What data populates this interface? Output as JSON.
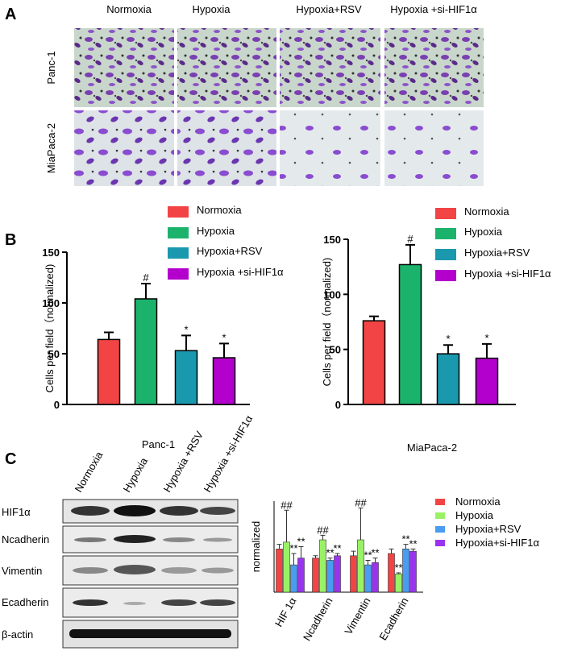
{
  "panels": {
    "a": "A",
    "b": "B",
    "c": "C"
  },
  "panel_a": {
    "columns": [
      "Normoxia",
      "Hypoxia",
      "Hypoxia+RSV",
      "Hypoxia +si-HIF1α"
    ],
    "rows": [
      "Panc-1",
      "MiaPaca-2"
    ]
  },
  "panel_c_blot": {
    "lanes": [
      "Normoxia",
      "Hypoxia",
      "Hypoxia +RSV",
      "Hypoxia +si-HIF1α"
    ],
    "rows": [
      "HIF1α",
      "Ncadherin",
      "Vimentin",
      "Ecadherin",
      "β-actin"
    ]
  },
  "chart_data": [
    {
      "type": "bar",
      "xlabel": "Panc-1",
      "ylabel": "Cells per field（normalized)",
      "categories": [
        "Normoxia",
        "Hypoxia",
        "Hypoxia+RSV",
        "Hypoxia +si-HIF1α"
      ],
      "values": [
        64,
        104,
        53,
        46
      ],
      "errors": [
        7,
        15,
        15,
        14
      ],
      "colors": [
        "#f24444",
        "#1bb36c",
        "#1a98ae",
        "#b400cc"
      ],
      "annotations": [
        null,
        "#",
        "*",
        "*"
      ],
      "ylim": [
        0,
        150
      ],
      "yticks": [
        0,
        50,
        100,
        150
      ]
    },
    {
      "type": "bar",
      "xlabel": "MiaPaca-2",
      "ylabel": "Cells per field（normalized)",
      "categories": [
        "Normoxia",
        "Hypoxia",
        "Hypoxia+RSV",
        "Hypoxia +si-HIF1α"
      ],
      "values": [
        76,
        127,
        46,
        42
      ],
      "errors": [
        4,
        18,
        8,
        13
      ],
      "colors": [
        "#f24444",
        "#1bb36c",
        "#1a98ae",
        "#b400cc"
      ],
      "annotations": [
        null,
        "#",
        "*",
        "*"
      ],
      "ylim": [
        0,
        150
      ],
      "yticks": [
        0,
        50,
        100,
        150
      ]
    },
    {
      "type": "grouped-bar",
      "ylabel": "normalized",
      "categories": [
        "HIF 1α",
        "Ncadherin",
        "Vimentin",
        "Ecadherin"
      ],
      "ylim": [
        0,
        4
      ],
      "series": [
        {
          "name": "Normoxia",
          "color": "#f24444",
          "values": [
            1.9,
            1.5,
            1.6,
            1.7
          ],
          "errors": [
            0.2,
            0.1,
            0.2,
            0.2
          ]
        },
        {
          "name": "Hypoxia",
          "color": "#99f266",
          "values": [
            2.2,
            2.3,
            2.3,
            0.8
          ],
          "errors": [
            1.4,
            0.2,
            1.4,
            0.05
          ],
          "annotations": [
            "##",
            "##",
            "##",
            "**"
          ]
        },
        {
          "name": "Hypoxia+RSV",
          "color": "#4a9cf2",
          "values": [
            1.2,
            1.4,
            1.2,
            1.9
          ],
          "errors": [
            0.5,
            0.1,
            0.2,
            0.2
          ],
          "annotations": [
            "**",
            "**",
            "**",
            "**"
          ]
        },
        {
          "name": "Hypoxia+si-HIF1α",
          "color": "#9a33f0",
          "values": [
            1.5,
            1.6,
            1.3,
            1.8
          ],
          "errors": [
            0.5,
            0.1,
            0.2,
            0.1
          ],
          "annotations": [
            "**",
            "**",
            "**",
            "**"
          ]
        }
      ]
    }
  ]
}
